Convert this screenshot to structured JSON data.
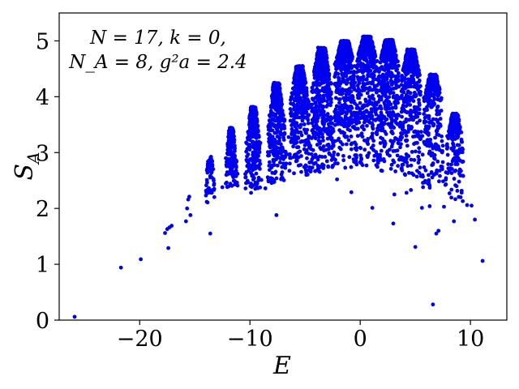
{
  "chart_data": {
    "type": "scatter",
    "xlabel": "E",
    "ylabel": "S",
    "ylabel_sub": "A",
    "xlim": [
      -27.3,
      13.3
    ],
    "ylim": [
      0,
      5.5
    ],
    "xticks": [
      -20,
      -10,
      0,
      10
    ],
    "xtick_labels": [
      "−20",
      "−10",
      "0",
      "10"
    ],
    "yticks": [
      0,
      1,
      2,
      3,
      4,
      5
    ],
    "ytick_labels": [
      "0",
      "1",
      "2",
      "3",
      "4",
      "5"
    ],
    "grid": false,
    "legend": "none",
    "annotation_lines": [
      "N = 17,  k = 0,",
      "N_A = 8,  g²a = 2.4"
    ],
    "marker_color": "#0000ee",
    "isolated_points": [
      [
        -25.9,
        0.06
      ],
      [
        -21.7,
        0.94
      ],
      [
        -19.9,
        1.09
      ],
      [
        -17.7,
        1.56
      ],
      [
        -17.5,
        1.63
      ],
      [
        -17.3,
        1.66
      ],
      [
        -17.1,
        1.69
      ],
      [
        -17.4,
        1.29
      ],
      [
        -15.8,
        1.77
      ],
      [
        -15.7,
        2.0
      ],
      [
        -15.6,
        2.16
      ],
      [
        -15.5,
        2.21
      ],
      [
        -15.4,
        1.88
      ],
      [
        -13.6,
        1.55
      ],
      [
        -8.6,
        2.36
      ],
      [
        -7.6,
        1.88
      ],
      [
        -5.3,
        3.31
      ],
      [
        -3.8,
        2.73
      ],
      [
        -2.1,
        2.52
      ],
      [
        -0.8,
        2.29
      ],
      [
        1.1,
        2.01
      ],
      [
        3.0,
        1.73
      ],
      [
        3.1,
        2.25
      ],
      [
        4.2,
        2.28
      ],
      [
        5.0,
        1.31
      ],
      [
        5.6,
        2.01
      ],
      [
        6.3,
        2.04
      ],
      [
        6.6,
        0.28
      ],
      [
        6.9,
        1.55
      ],
      [
        7.1,
        1.6
      ],
      [
        8.5,
        1.77
      ],
      [
        9.3,
        2.13
      ],
      [
        10.1,
        2.05
      ],
      [
        10.4,
        1.8
      ],
      [
        11.1,
        1.06
      ],
      [
        -12.5,
        2.38
      ],
      [
        -11.4,
        2.63
      ],
      [
        -9.9,
        2.28
      ],
      [
        -9.2,
        2.55
      ],
      [
        -4.5,
        2.66
      ],
      [
        -6.8,
        2.8
      ],
      [
        9.7,
        2.06
      ],
      [
        8.1,
        2.27
      ],
      [
        7.6,
        2.03
      ],
      [
        4.6,
        2.33
      ]
    ],
    "clusters": [
      {
        "x": -13.6,
        "width": 0.8,
        "y_min": 2.05,
        "y_max": 2.93,
        "peak": 2.6,
        "count": 70
      },
      {
        "x": -11.7,
        "width": 1.0,
        "y_min": 2.38,
        "y_max": 3.45,
        "peak": 2.9,
        "count": 160
      },
      {
        "x": -9.7,
        "width": 1.3,
        "y_min": 2.35,
        "y_max": 3.82,
        "peak": 3.2,
        "count": 320
      },
      {
        "x": -7.6,
        "width": 1.5,
        "y_min": 2.45,
        "y_max": 4.25,
        "peak": 3.6,
        "count": 420
      },
      {
        "x": -5.5,
        "width": 1.7,
        "y_min": 2.6,
        "y_max": 4.55,
        "peak": 4.0,
        "count": 520
      },
      {
        "x": -3.5,
        "width": 1.8,
        "y_min": 2.65,
        "y_max": 4.88,
        "peak": 4.3,
        "count": 620
      },
      {
        "x": -1.4,
        "width": 1.9,
        "y_min": 2.7,
        "y_max": 5.0,
        "peak": 4.6,
        "count": 680
      },
      {
        "x": 0.6,
        "width": 1.9,
        "y_min": 2.75,
        "y_max": 5.08,
        "peak": 4.7,
        "count": 700
      },
      {
        "x": 2.6,
        "width": 1.9,
        "y_min": 2.65,
        "y_max": 5.02,
        "peak": 4.6,
        "count": 660
      },
      {
        "x": 4.6,
        "width": 1.8,
        "y_min": 2.55,
        "y_max": 4.85,
        "peak": 4.4,
        "count": 560
      },
      {
        "x": 6.6,
        "width": 1.7,
        "y_min": 2.35,
        "y_max": 4.4,
        "peak": 4.0,
        "count": 420
      },
      {
        "x": 8.6,
        "width": 1.5,
        "y_min": 2.15,
        "y_max": 3.7,
        "peak": 3.3,
        "count": 260
      }
    ]
  }
}
